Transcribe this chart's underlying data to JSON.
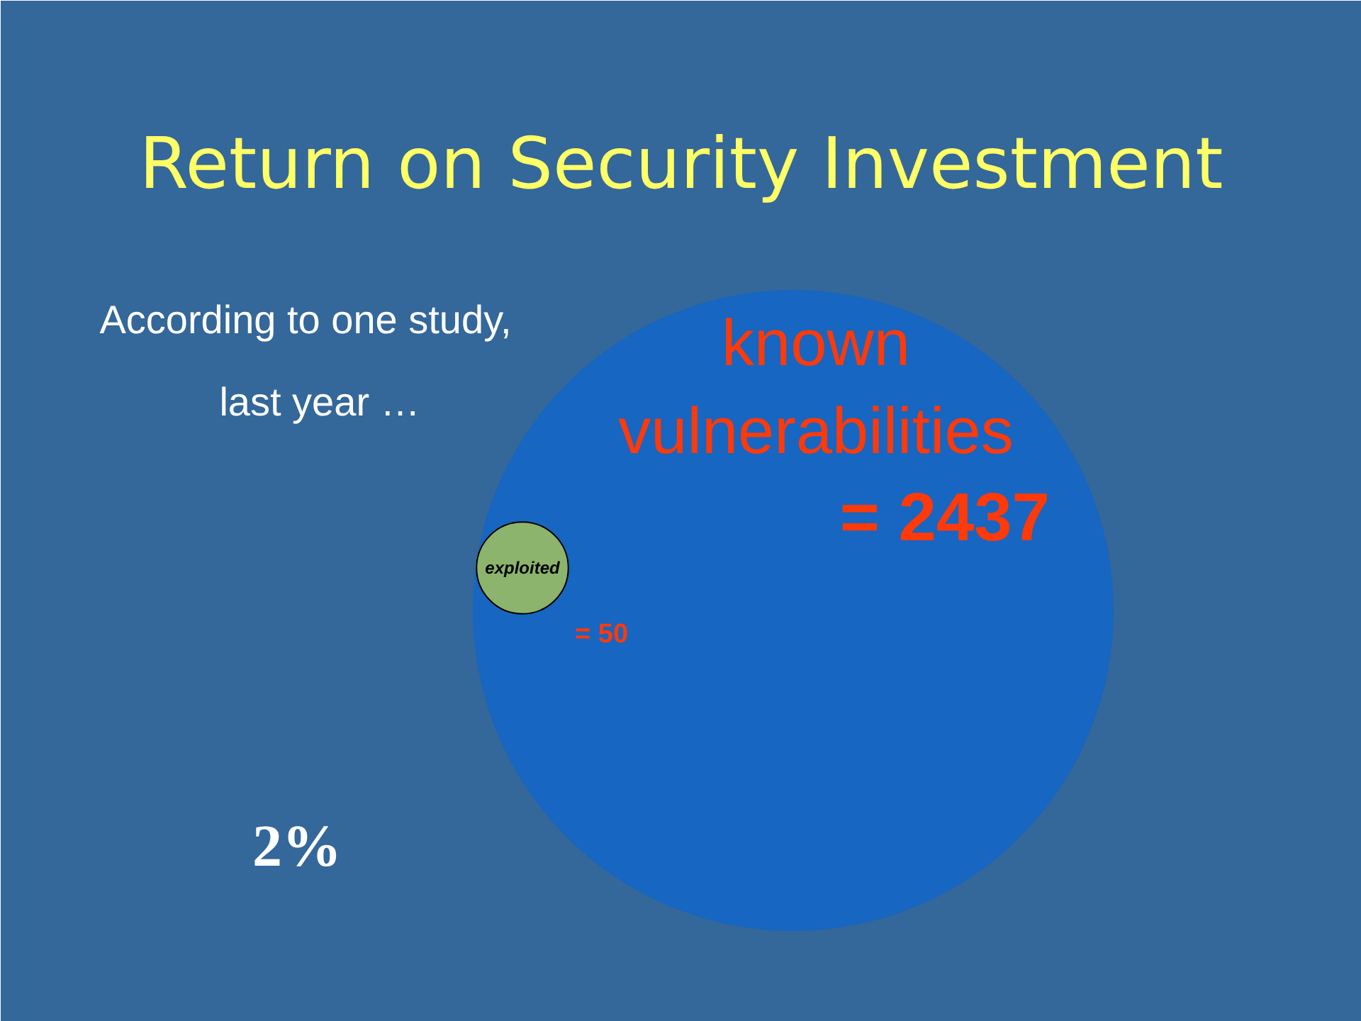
{
  "chart_data": {
    "type": "other",
    "title": "Return on Security Investment",
    "categories": [
      "known vulnerabilities",
      "exploited"
    ],
    "values": [
      2437,
      50
    ],
    "colors": [
      "#1666c2",
      "#8cb46c"
    ],
    "value_labels": [
      "= 2437",
      "= 50"
    ],
    "annotations": [
      "According to one study,",
      "last year …",
      "2%"
    ]
  }
}
